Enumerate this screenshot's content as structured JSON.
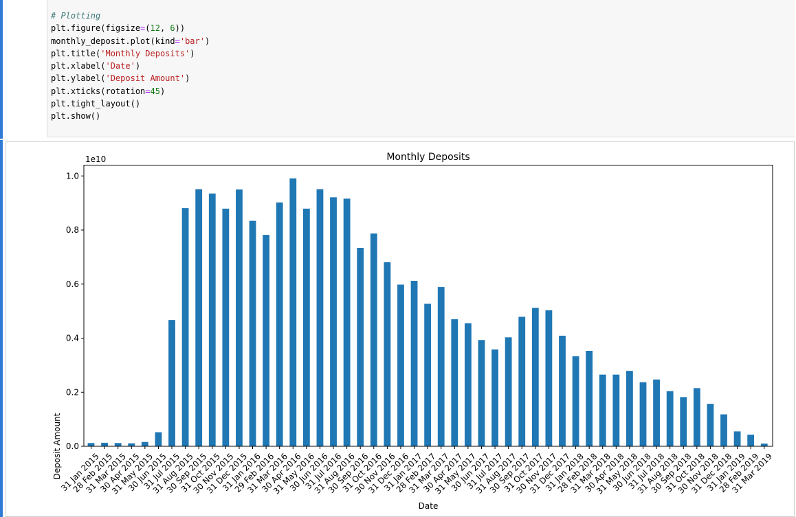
{
  "code_cell": {
    "lines": [
      {
        "segs": [
          {
            "t": "# Plotting",
            "c": "comment"
          }
        ]
      },
      {
        "segs": [
          {
            "t": "plt.figure(figsize",
            "c": ""
          },
          {
            "t": "=",
            "c": "op"
          },
          {
            "t": "(",
            "c": ""
          },
          {
            "t": "12",
            "c": "num"
          },
          {
            "t": ", ",
            "c": ""
          },
          {
            "t": "6",
            "c": "num"
          },
          {
            "t": "))",
            "c": ""
          }
        ]
      },
      {
        "segs": [
          {
            "t": "monthly_deposit.plot(kind",
            "c": ""
          },
          {
            "t": "=",
            "c": "op"
          },
          {
            "t": "'bar'",
            "c": "str"
          },
          {
            "t": ")",
            "c": ""
          }
        ]
      },
      {
        "segs": [
          {
            "t": "plt.title(",
            "c": ""
          },
          {
            "t": "'Monthly Deposits'",
            "c": "str"
          },
          {
            "t": ")",
            "c": ""
          }
        ]
      },
      {
        "segs": [
          {
            "t": "plt.xlabel(",
            "c": ""
          },
          {
            "t": "'Date'",
            "c": "str"
          },
          {
            "t": ")",
            "c": ""
          }
        ]
      },
      {
        "segs": [
          {
            "t": "plt.ylabel(",
            "c": ""
          },
          {
            "t": "'Deposit Amount'",
            "c": "str"
          },
          {
            "t": ")",
            "c": ""
          }
        ]
      },
      {
        "segs": [
          {
            "t": "plt.xticks(rotation",
            "c": ""
          },
          {
            "t": "=",
            "c": "op"
          },
          {
            "t": "45",
            "c": "num"
          },
          {
            "t": ")",
            "c": ""
          }
        ]
      },
      {
        "segs": [
          {
            "t": "plt.tight_layout()",
            "c": ""
          }
        ]
      },
      {
        "segs": [
          {
            "t": "plt.show()",
            "c": ""
          }
        ]
      }
    ]
  },
  "chart_data": {
    "type": "bar",
    "title": "Monthly Deposits",
    "xlabel": "Date",
    "ylabel": "Deposit Amount",
    "offset_label": "1e10",
    "ylim": [
      0,
      1.04
    ],
    "yticks": [
      "0.0",
      "0.2",
      "0.4",
      "0.6",
      "0.8",
      "1.0"
    ],
    "bar_color": "#1f77b4",
    "grid": false,
    "categories": [
      "31 Jan 2015",
      "28 Feb 2015",
      "31 Mar 2015",
      "30 Apr 2015",
      "31 May 2015",
      "30 Jun 2015",
      "31 Jul 2015",
      "31 Aug 2015",
      "30 Sep 2015",
      "31 Oct 2015",
      "30 Nov 2015",
      "31 Dec 2015",
      "31 Jan 2016",
      "29 Feb 2016",
      "31 Mar 2016",
      "30 Apr 2016",
      "31 May 2016",
      "30 Jun 2016",
      "31 Jul 2016",
      "31 Aug 2016",
      "30 Sep 2016",
      "31 Oct 2016",
      "30 Nov 2016",
      "31 Dec 2016",
      "31 Jan 2017",
      "28 Feb 2017",
      "31 Mar 2017",
      "30 Apr 2017",
      "31 May 2017",
      "30 Jun 2017",
      "31 Jul 2017",
      "31 Aug 2017",
      "30 Sep 2017",
      "31 Oct 2017",
      "30 Nov 2017",
      "31 Dec 2017",
      "31 Jan 2018",
      "28 Feb 2018",
      "31 Mar 2018",
      "30 Apr 2018",
      "31 May 2018",
      "30 Jun 2018",
      "31 Jul 2018",
      "31 Aug 2018",
      "30 Sep 2018",
      "31 Oct 2018",
      "30 Nov 2018",
      "31 Dec 2018",
      "31 Jan 2019",
      "28 Feb 2019",
      "31 Mar 2019"
    ],
    "values": [
      0.012,
      0.013,
      0.012,
      0.011,
      0.016,
      0.052,
      0.467,
      0.881,
      0.951,
      0.935,
      0.879,
      0.95,
      0.834,
      0.782,
      0.902,
      0.991,
      0.879,
      0.951,
      0.921,
      0.916,
      0.734,
      0.787,
      0.681,
      0.598,
      0.612,
      0.527,
      0.589,
      0.47,
      0.455,
      0.393,
      0.358,
      0.403,
      0.479,
      0.512,
      0.503,
      0.409,
      0.333,
      0.353,
      0.265,
      0.265,
      0.279,
      0.237,
      0.247,
      0.204,
      0.182,
      0.215,
      0.157,
      0.118,
      0.055,
      0.043,
      0.01
    ]
  }
}
